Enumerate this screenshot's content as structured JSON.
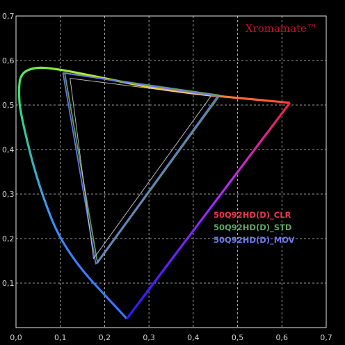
{
  "brand": {
    "name": "Xromamate™",
    "color": "#c8102e"
  },
  "chart_data": {
    "type": "scatter",
    "xlim": [
      0.0,
      0.7
    ],
    "ylim": [
      0.0,
      0.7
    ],
    "grid": true,
    "grid_style": "dashed",
    "legend_placement": "center-right",
    "x_ticks": [
      "0,0",
      "0,1",
      "0,2",
      "0,3",
      "0,4",
      "0,5",
      "0,6",
      "0,7"
    ],
    "y_ticks": [
      "0,1",
      "0,2",
      "0,3",
      "0,4",
      "0,5",
      "0,6",
      "0,7"
    ],
    "x_tick_values": [
      0,
      0.1,
      0.2,
      0.3,
      0.4,
      0.5,
      0.6,
      0.7
    ],
    "y_tick_values": [
      0.1,
      0.2,
      0.3,
      0.4,
      0.5,
      0.6,
      0.7
    ],
    "spectral_locus": [
      [
        0.618,
        0.505
      ],
      [
        0.25,
        0.02
      ],
      [
        0.11,
        0.17
      ],
      [
        0.05,
        0.32
      ],
      [
        0.01,
        0.48
      ],
      [
        0.006,
        0.53
      ],
      [
        0.01,
        0.57
      ],
      [
        0.04,
        0.585
      ],
      [
        0.09,
        0.582
      ],
      [
        0.2,
        0.56
      ],
      [
        0.35,
        0.53
      ],
      [
        0.618,
        0.505
      ]
    ],
    "series": [
      {
        "name": "50Q92HD(D)_CLR",
        "color": "#e23a4e",
        "points": [
          [
            0.62,
            0.505
          ],
          [
            0.25,
            0.02
          ],
          [
            0.05,
            0.32
          ],
          [
            0.09,
            0.582
          ]
        ]
      },
      {
        "name": "50Q92HD(D)_STD",
        "color": "#5ea86a",
        "points": [
          [
            0.11,
            0.572
          ],
          [
            0.184,
            0.145
          ],
          [
            0.46,
            0.522
          ]
        ]
      },
      {
        "name": "50Q92HD(D)_MOV",
        "color": "#6f79f0",
        "points": [
          [
            0.106,
            0.572
          ],
          [
            0.18,
            0.143
          ],
          [
            0.455,
            0.52
          ]
        ]
      },
      {
        "name": "",
        "color": "#d8d8d8",
        "points": [
          [
            0.122,
            0.56
          ],
          [
            0.175,
            0.155
          ],
          [
            0.44,
            0.52
          ]
        ]
      }
    ]
  }
}
